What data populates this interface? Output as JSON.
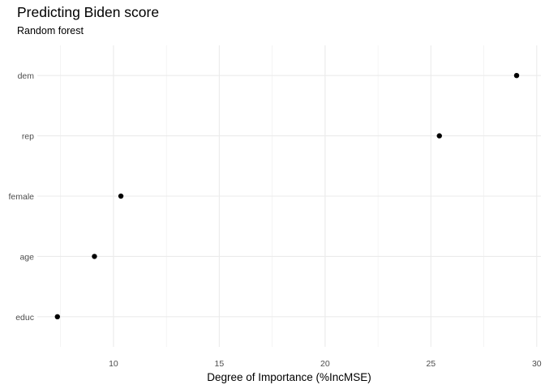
{
  "chart_data": {
    "type": "scatter",
    "title": "Predicting Biden score",
    "subtitle": "Random forest",
    "xlabel": "Degree of Importance (%IncMSE)",
    "ylabel": "",
    "categories": [
      "dem",
      "rep",
      "female",
      "age",
      "educ"
    ],
    "values": [
      29.05,
      25.4,
      10.35,
      9.1,
      7.35
    ],
    "xlim": [
      6.4,
      30.2
    ],
    "xticks": [
      10,
      15,
      20,
      25,
      30
    ],
    "xtick_labels": [
      "10",
      "15",
      "20",
      "25",
      "30"
    ],
    "grid": true,
    "legend": "none",
    "point_color": "#000000"
  }
}
